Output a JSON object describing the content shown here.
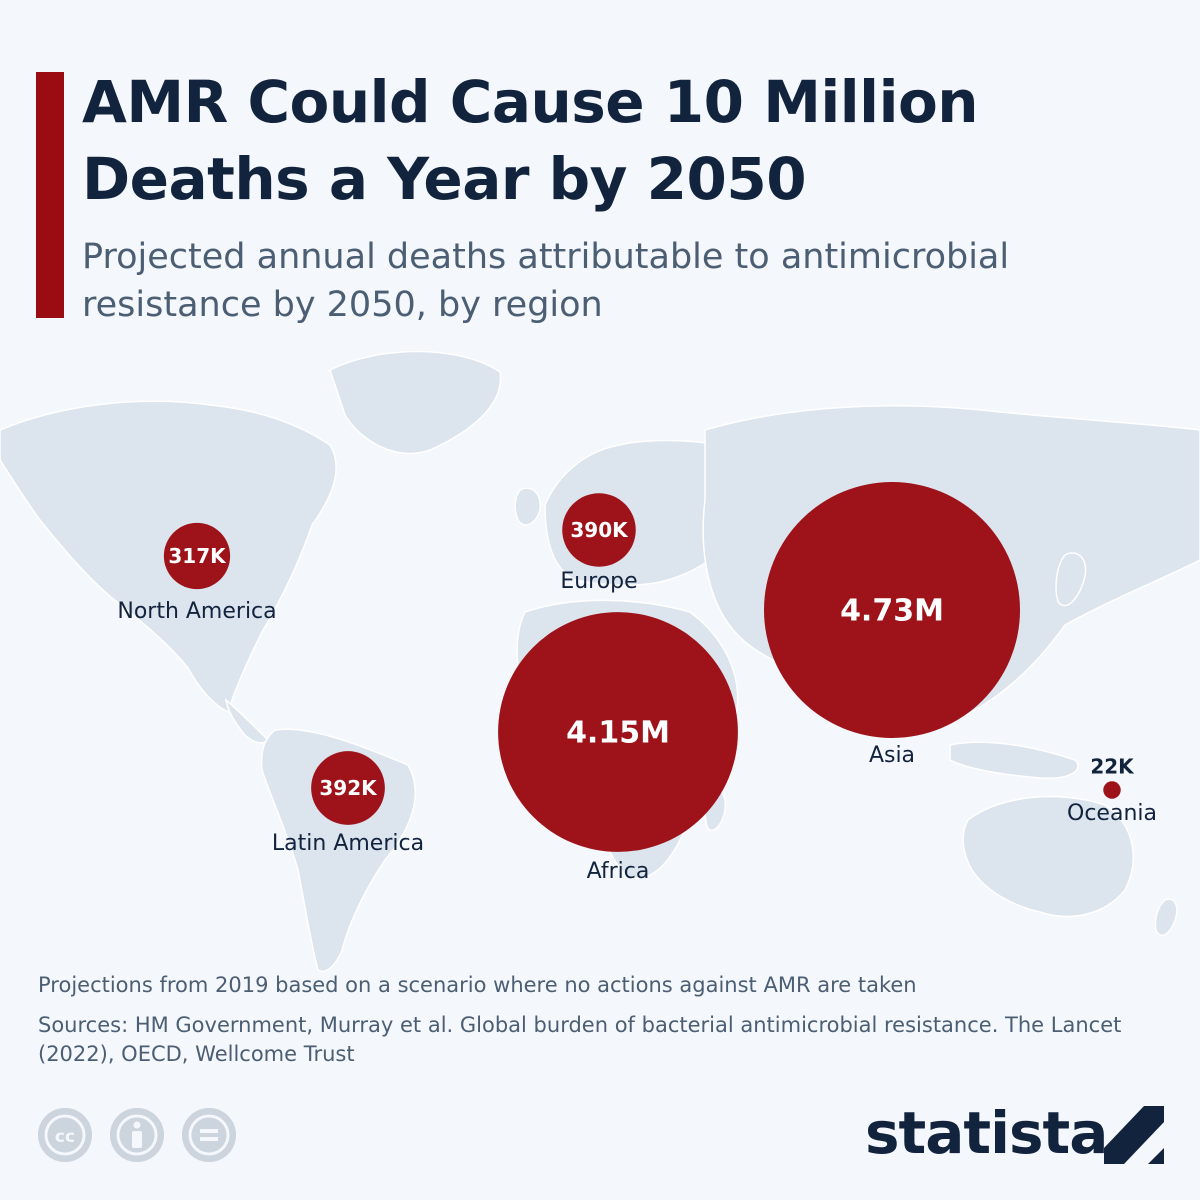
{
  "header": {
    "title": "AMR Could Cause 10 Million Deaths a Year by 2050",
    "subtitle": "Projected annual deaths attributable to antimicrobial resistance by 2050, by region"
  },
  "colors": {
    "accent": "#9b0b12",
    "bubble": "#9b0b12",
    "land": "#dce4ee",
    "title": "#12233d",
    "text": "#4b5e73"
  },
  "map": {
    "regions": [
      {
        "name": "North America",
        "value": 317000,
        "value_label": "317K"
      },
      {
        "name": "Europe",
        "value": 390000,
        "value_label": "390K"
      },
      {
        "name": "Latin America",
        "value": 392000,
        "value_label": "392K"
      },
      {
        "name": "Africa",
        "value": 4150000,
        "value_label": "4.15M"
      },
      {
        "name": "Asia",
        "value": 4730000,
        "value_label": "4.73M"
      },
      {
        "name": "Oceania",
        "value": 22000,
        "value_label": "22K"
      }
    ]
  },
  "footer": {
    "note": "Projections from 2019 based on a scenario where no actions against AMR are taken",
    "sources": "Sources: HM Government, Murray et al. Global burden of bacterial antimicrobial resistance. The Lancet (2022), OECD, Wellcome Trust",
    "brand": "statista",
    "license_icons": [
      "cc-icon",
      "attribution-icon",
      "no-derivatives-icon"
    ]
  }
}
